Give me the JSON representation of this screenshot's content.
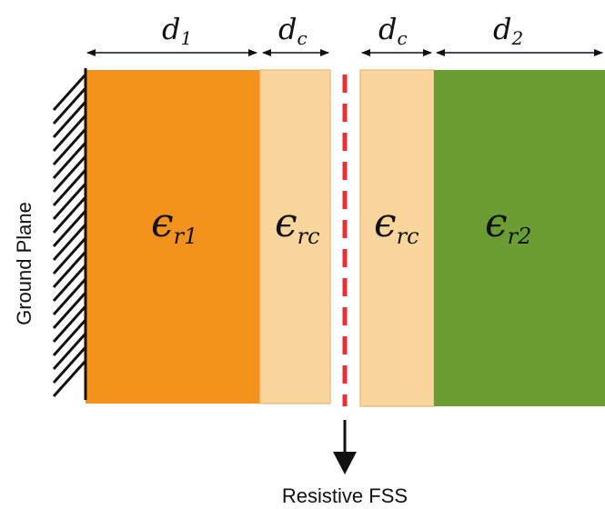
{
  "dimensions": {
    "d1": {
      "base": "d",
      "sub": "1"
    },
    "dc_left": {
      "base": "d",
      "sub": "c"
    },
    "dc_right": {
      "base": "d",
      "sub": "c"
    },
    "d2": {
      "base": "d",
      "sub": "2"
    }
  },
  "layers": {
    "layer1": {
      "base": "ϵ",
      "sub": "r1",
      "color": "#f4921e"
    },
    "coat_left": {
      "base": "ϵ",
      "sub": "rc",
      "color": "#fad69d"
    },
    "coat_right": {
      "base": "ϵ",
      "sub": "rc",
      "color": "#fad69d"
    },
    "layer2": {
      "base": "ϵ",
      "sub": "r2",
      "color": "#6b9e32"
    }
  },
  "labels": {
    "ground_plane": "Ground Plane",
    "resistive_fss": "Resistive FSS"
  },
  "colors": {
    "fss_line": "#e8303a",
    "coat_border": "#e9c089"
  }
}
